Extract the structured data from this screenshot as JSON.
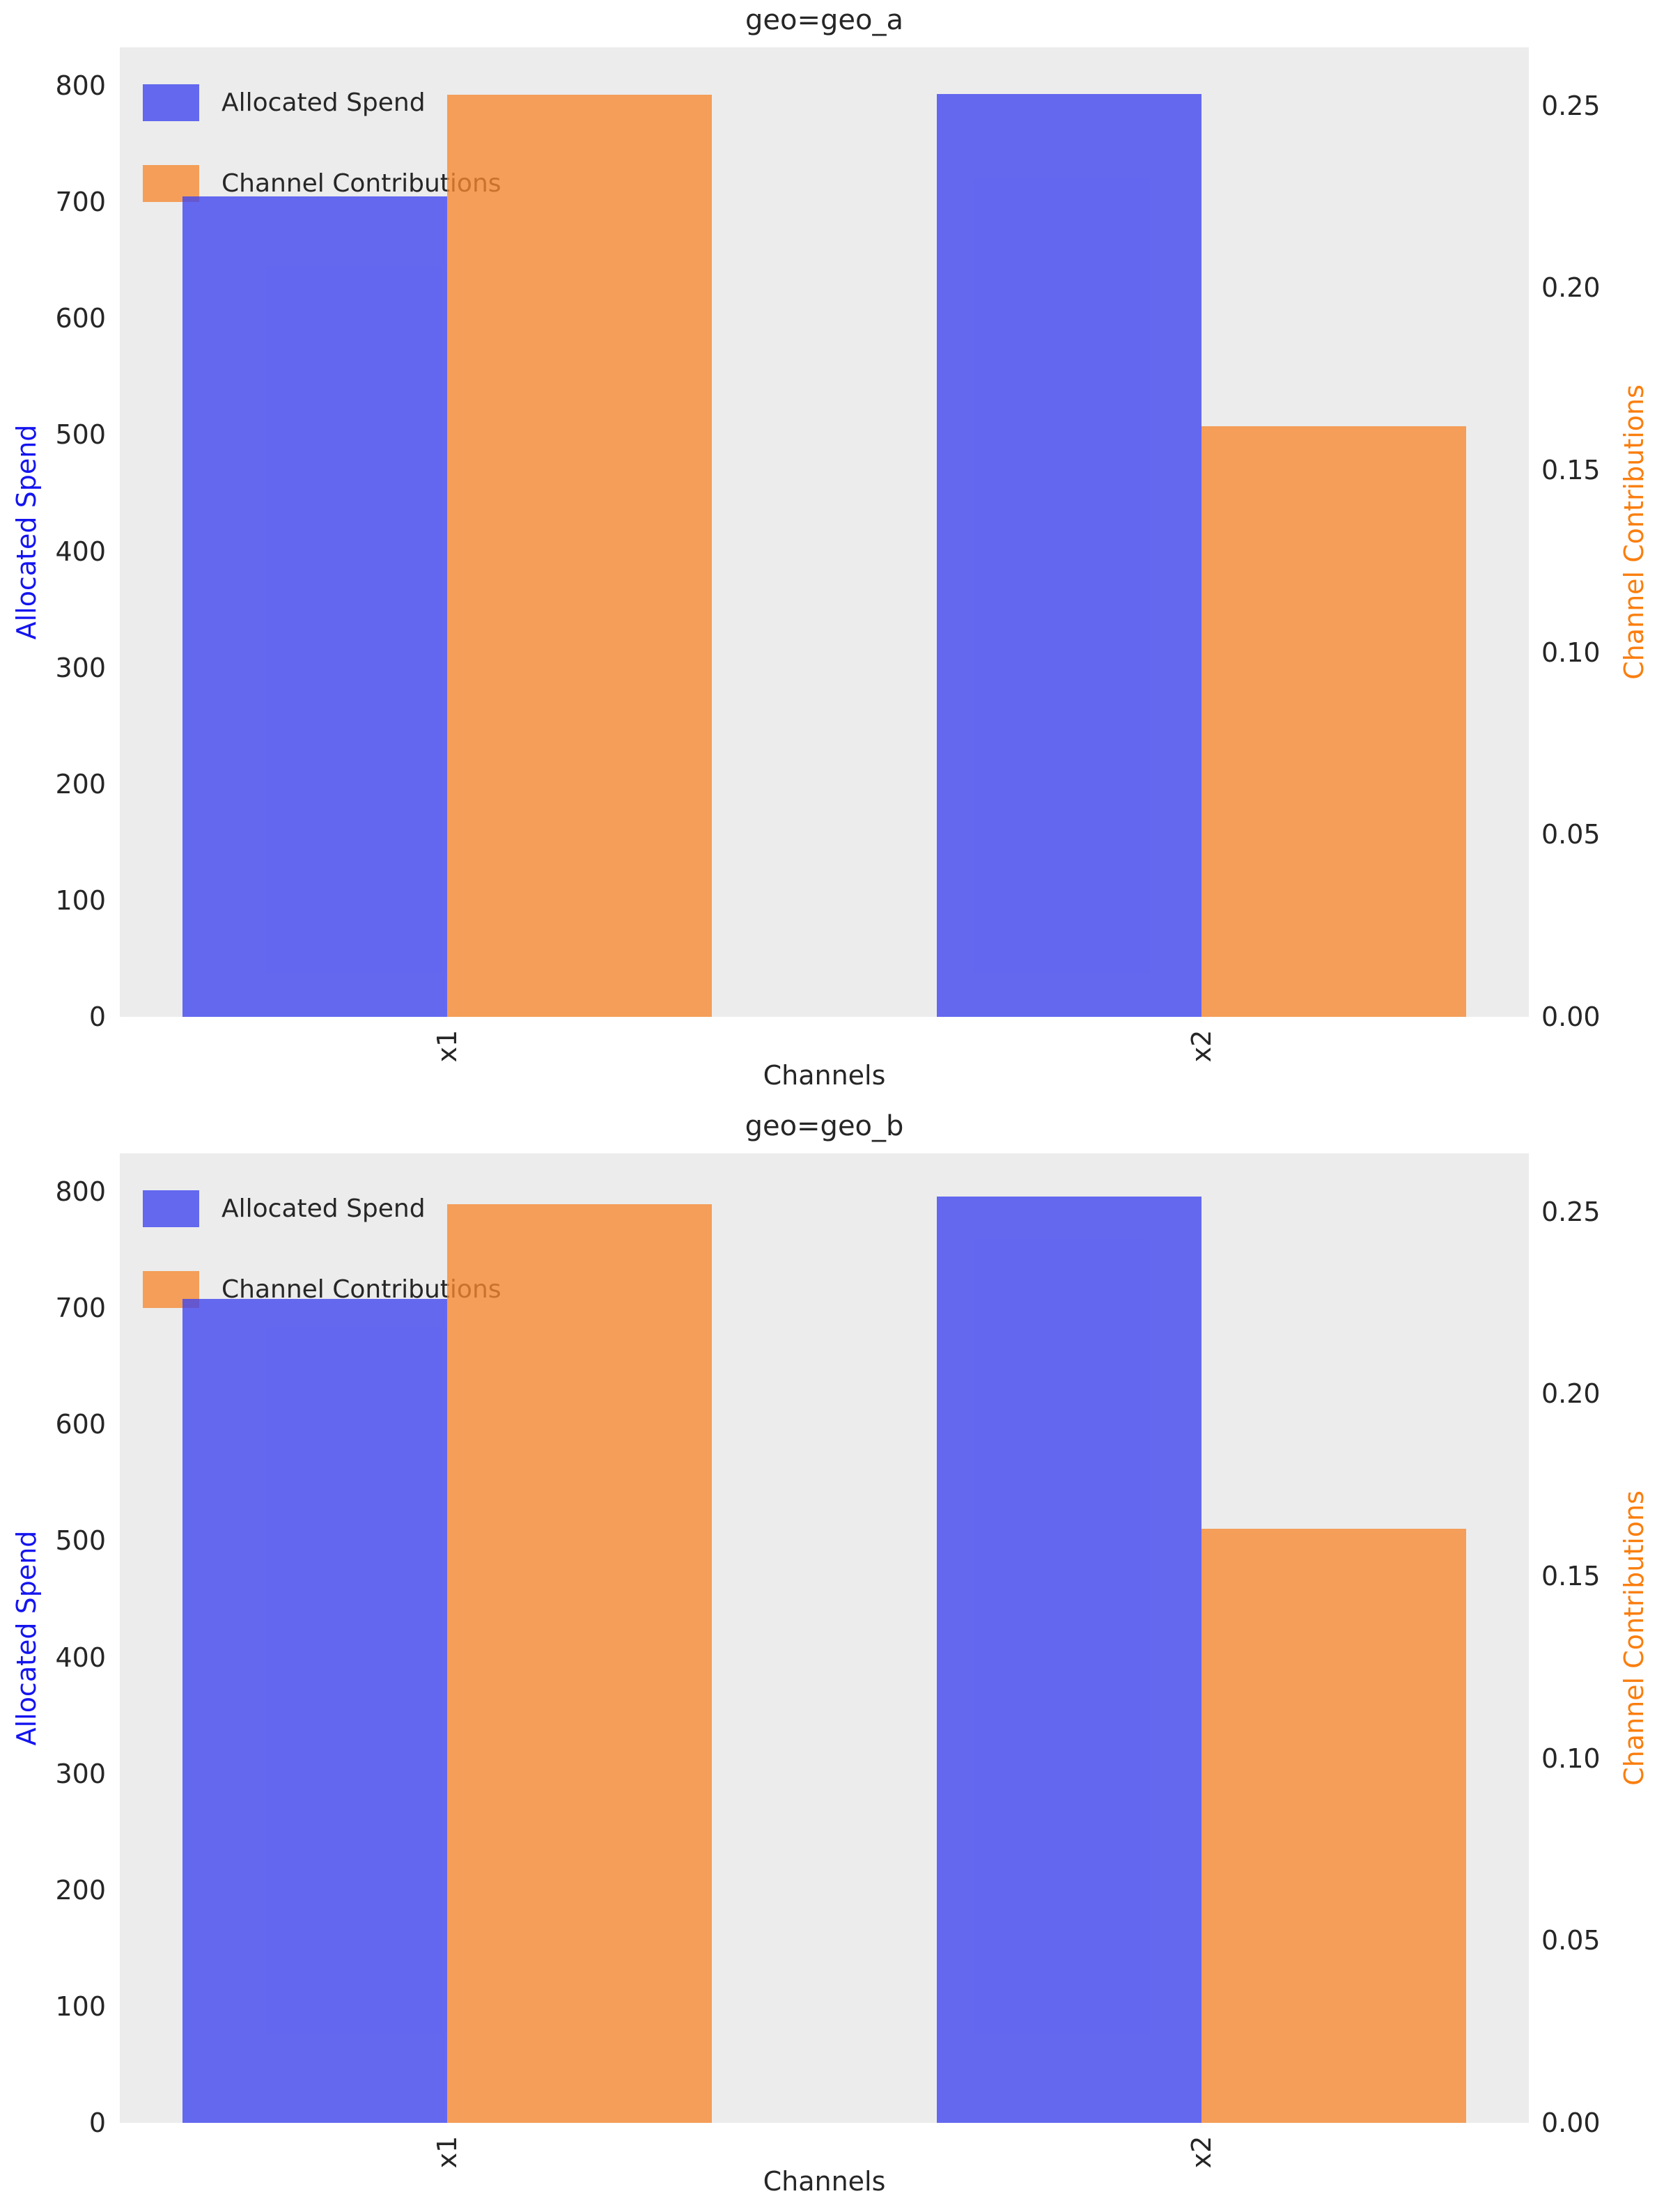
{
  "legend": {
    "spend_label": "Allocated Spend",
    "contrib_label": "Channel Contributions"
  },
  "colors": {
    "bar_spend": "rgba(60,66,240,0.78)",
    "bar_contrib": "rgba(246,136,47,0.78)",
    "bar_spend_flat": "#6366EE",
    "bar_contrib_flat": "#F49E59",
    "left_axis_label": "#1414F0",
    "right_axis_label": "#FA7E0E",
    "tick_label": "#262626",
    "plot_background": "#ECECEC",
    "page_background": "#FFFFFF"
  },
  "chart_data": [
    {
      "type": "bar",
      "title": "geo=geo_a",
      "xlabel": "Channels",
      "ylabel_left": "Allocated Spend",
      "ylabel_right": "Channel Contributions",
      "categories": [
        "x1",
        "x2"
      ],
      "series": [
        {
          "name": "Allocated Spend",
          "axis": "left",
          "values": [
            705,
            793
          ]
        },
        {
          "name": "Channel Contributions",
          "axis": "right",
          "values": [
            0.253,
            0.162
          ]
        }
      ],
      "left_ticks": [
        0,
        100,
        200,
        300,
        400,
        500,
        600,
        700,
        800
      ],
      "right_ticks": [
        0.0,
        0.05,
        0.1,
        0.15,
        0.2,
        0.25
      ],
      "left_ylim": [
        0,
        833
      ],
      "right_ylim": [
        0,
        0.266
      ],
      "grid": "off",
      "legend_position": "upper-left"
    },
    {
      "type": "bar",
      "title": "geo=geo_b",
      "xlabel": "Channels",
      "ylabel_left": "Allocated Spend",
      "ylabel_right": "Channel Contributions",
      "categories": [
        "x1",
        "x2"
      ],
      "series": [
        {
          "name": "Allocated Spend",
          "axis": "left",
          "values": [
            708,
            796
          ]
        },
        {
          "name": "Channel Contributions",
          "axis": "right",
          "values": [
            0.252,
            0.163
          ]
        }
      ],
      "left_ticks": [
        0,
        100,
        200,
        300,
        400,
        500,
        600,
        700,
        800
      ],
      "right_ticks": [
        0.0,
        0.05,
        0.1,
        0.15,
        0.2,
        0.25
      ],
      "left_ylim": [
        0,
        833
      ],
      "right_ylim": [
        0,
        0.266
      ],
      "grid": "off",
      "legend_position": "upper-left"
    }
  ]
}
